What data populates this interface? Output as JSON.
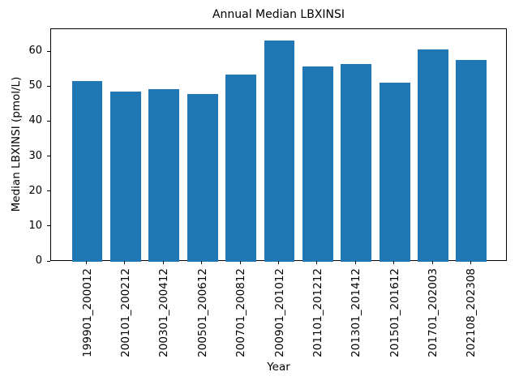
{
  "chart_data": {
    "type": "bar",
    "title": "Annual Median LBXINSI",
    "xlabel": "Year",
    "ylabel": "Median LBXINSI (pmol/L)",
    "categories": [
      "199901_200012",
      "200101_200212",
      "200301_200412",
      "200501_200612",
      "200701_200812",
      "200901_201012",
      "201101_201212",
      "201301_201412",
      "201501_201612",
      "201701_202003",
      "202108_202308"
    ],
    "values": [
      51.7,
      48.6,
      49.4,
      47.9,
      53.6,
      63.3,
      55.9,
      56.6,
      51.1,
      60.8,
      57.7
    ],
    "yticks": [
      0,
      10,
      20,
      30,
      40,
      50,
      60
    ],
    "ytick_labels": [
      "0",
      "10",
      "20",
      "30",
      "40",
      "50",
      "60"
    ],
    "ylim": [
      0,
      66.5
    ],
    "x_tick_rotation": 90,
    "grid": false,
    "legend": null,
    "bar_color": "#1f77b4",
    "axis_color": "#000000",
    "background_color": "#ffffff"
  }
}
